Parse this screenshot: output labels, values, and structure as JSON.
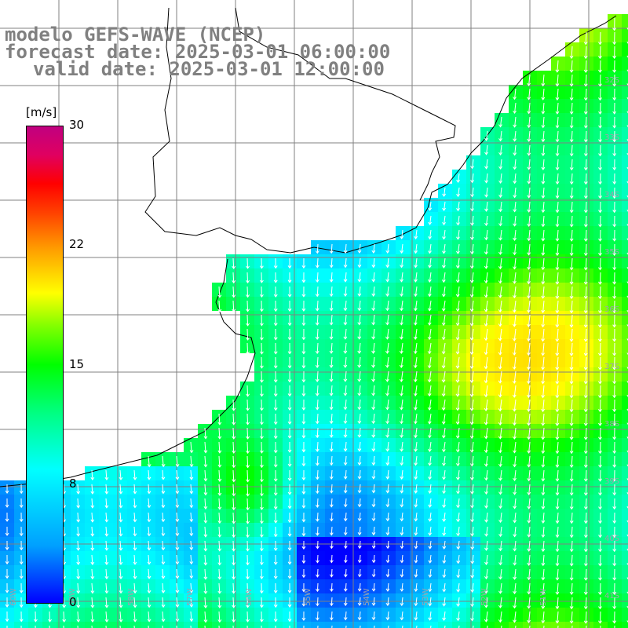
{
  "title": {
    "line1": "modelo GEFS-WAVE (NCEP)",
    "line2": "forecast date: 2025-03-01 06:00:00",
    "line3": "valid date: 2025-03-01 12:00:00"
  },
  "colorbar": {
    "unit": "[m/s]",
    "ticks": [
      "30",
      "22",
      "15",
      "8",
      "0"
    ],
    "min": 0,
    "max": 30,
    "colors": [
      "#0000ff",
      "#00a0ff",
      "#00ffff",
      "#00ff80",
      "#00ff00",
      "#ffff00",
      "#ffa000",
      "#ff0000",
      "#c00080"
    ]
  },
  "lat_labels": [
    "32S",
    "33S",
    "34S",
    "35S",
    "36S",
    "37S",
    "38S",
    "39S",
    "40S",
    "41S"
  ],
  "lon_labels": [
    "60W",
    "59W",
    "58W",
    "57W",
    "56W",
    "55W",
    "54W",
    "53W",
    "52W",
    "51W"
  ],
  "colors": {
    "grid": "#808080",
    "land": "#ffffff",
    "coast": "#000000",
    "arrow": "#ffffff"
  }
}
